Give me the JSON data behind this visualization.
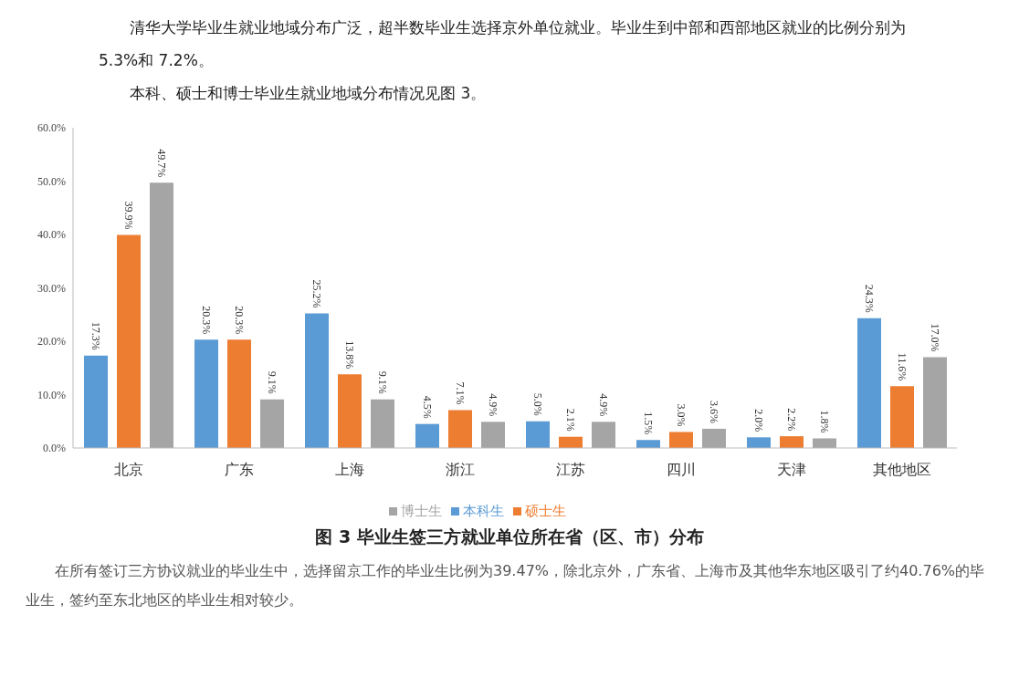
{
  "chart_data": {
    "type": "bar",
    "title": "图 3 毕业生签三方就业单位所在省（区、市）分布",
    "annotations": [
      "清华大学毕业生就业地域分布广泛，超半数毕业生选择京外单位就业。毕业生到中部和西部地区就业的比例分别为 5.3%和 7.2%。",
      "本科、硕士和博士毕业生就业地域分布情况见图 3。",
      "在所有签订三方协议就业的毕业生中，选择留京工作的毕业生比例为39.47%，除北京外，广东省、上海市及其他华东地区吸引了约40.76%的毕业生，签约至东北地区的毕业生相对较少。"
    ],
    "categories": [
      "北京",
      "广东",
      "上海",
      "浙江",
      "江苏",
      "四川",
      "天津",
      "其他地区"
    ],
    "series": [
      {
        "name": "本科生",
        "color": "#5b9bd5",
        "values": [
          17.3,
          20.3,
          25.2,
          4.5,
          5.0,
          1.5,
          2.0,
          24.3
        ],
        "value_labels": [
          "17.3%",
          "20.3%",
          "25.2%",
          "4.5%",
          "5.0%",
          "1.5%",
          "2.0%",
          "24.3%"
        ]
      },
      {
        "name": "硕士生",
        "color": "#ed7d31",
        "values": [
          39.9,
          20.3,
          13.8,
          7.1,
          2.1,
          3.0,
          2.2,
          11.6
        ],
        "value_labels": [
          "39.9%",
          "20.3%",
          "13.8%",
          "7.1%",
          "2.1%",
          "3.0%",
          "2.2%",
          "11.6%"
        ]
      },
      {
        "name": "博士生",
        "color": "#a5a5a5",
        "values": [
          49.7,
          9.1,
          9.1,
          4.9,
          4.9,
          3.6,
          1.8,
          17.0
        ],
        "value_labels": [
          "49.7%",
          "9.1%",
          "9.1%",
          "4.9%",
          "4.9%",
          "3.6%",
          "1.8%",
          "17.0%"
        ]
      }
    ],
    "ylim": [
      0,
      60
    ],
    "yticks": [
      {
        "value": 0,
        "label": "0.0%"
      },
      {
        "value": 10,
        "label": "10.0%"
      },
      {
        "value": 20,
        "label": "20.0%"
      },
      {
        "value": 30,
        "label": "30.0%"
      },
      {
        "value": 40,
        "label": "40.0%"
      },
      {
        "value": 50,
        "label": "50.0%"
      },
      {
        "value": 60,
        "label": "60.0%"
      }
    ],
    "grid": false,
    "legend": "bottom"
  }
}
